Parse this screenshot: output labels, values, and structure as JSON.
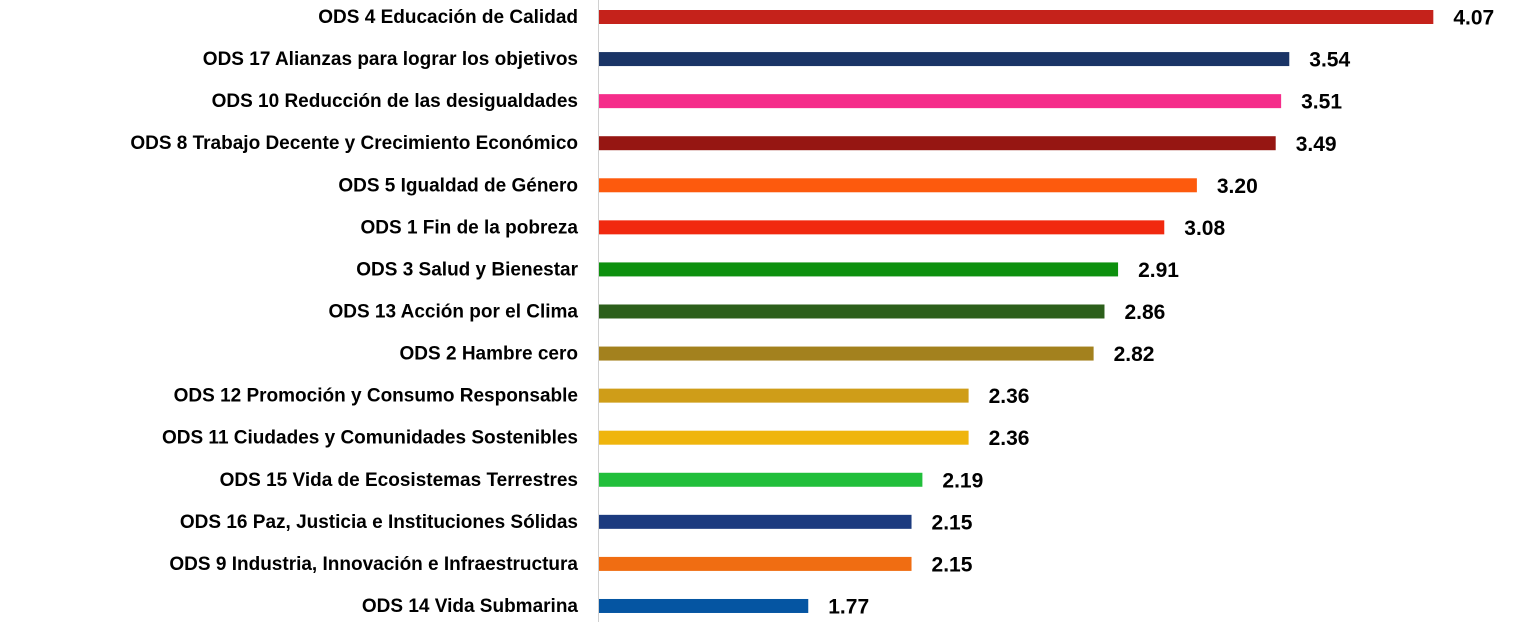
{
  "chart_data": {
    "type": "bar",
    "orientation": "horizontal",
    "categories": [
      "ODS 4 Educación  de Calidad",
      "ODS 17 Alianzas para lograr los objetivos",
      "ODS 10 Reducción de las desigualdades",
      "ODS 8 Trabajo Decente y Crecimiento Económico",
      "ODS 5 Igualdad de Género",
      "ODS 1 Fin de la pobreza",
      "ODS 3 Salud y Bienestar",
      "ODS 13 Acción por el Clima",
      "ODS 2 Hambre cero",
      "ODS 12 Promoción y Consumo Responsable",
      "ODS 11 Ciudades y Comunidades Sostenibles",
      "ODS 15 Vida de Ecosistemas Terrestres",
      "ODS 16 Paz, Justicia e Instituciones Sólidas",
      "ODS 9  Industria, Innovación e Infraestructura",
      "ODS 14 Vida Submarina"
    ],
    "values": [
      4.07,
      3.54,
      3.51,
      3.49,
      3.2,
      3.08,
      2.91,
      2.86,
      2.82,
      2.36,
      2.36,
      2.19,
      2.15,
      2.15,
      1.77
    ],
    "value_labels": [
      "4.07",
      "3.54",
      "3.51",
      "3.49",
      "3.20",
      "3.08",
      "2.91",
      "2.86",
      "2.82",
      "2.36",
      "2.36",
      "2.19",
      "2.15",
      "2.15",
      "1.77"
    ],
    "colors": [
      "#c5221b",
      "#1a3466",
      "#f52d8a",
      "#961612",
      "#fd5a0d",
      "#f1290f",
      "#0d900e",
      "#2c5f1b",
      "#a3811e",
      "#cf9d18",
      "#efb50d",
      "#21bf3b",
      "#1c3b7f",
      "#f06d12",
      "#0555a2"
    ],
    "xlim": [
      1,
      4.4
    ]
  }
}
